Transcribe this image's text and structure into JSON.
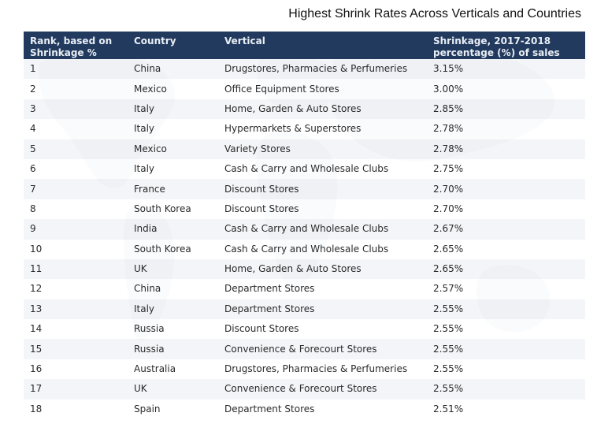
{
  "chart_data": {
    "type": "table",
    "title": "Highest Shrink Rates Across Verticals and Countries",
    "columns": [
      "Rank, based on Shrinkage %",
      "Country",
      "Vertical",
      "Shrinkage, 2017-2018 percentage (%) of sales"
    ],
    "rows": [
      [
        "1",
        "China",
        "Drugstores, Pharmacies & Perfumeries",
        "3.15%"
      ],
      [
        "2",
        "Mexico",
        "Office Equipment Stores",
        "3.00%"
      ],
      [
        "3",
        "Italy",
        "Home, Garden & Auto Stores",
        "2.85%"
      ],
      [
        "4",
        "Italy",
        "Hypermarkets & Superstores",
        "2.78%"
      ],
      [
        "5",
        "Mexico",
        "Variety Stores",
        "2.78%"
      ],
      [
        "6",
        "Italy",
        "Cash & Carry and Wholesale Clubs",
        "2.75%"
      ],
      [
        "7",
        "France",
        "Discount Stores",
        "2.70%"
      ],
      [
        "8",
        "South Korea",
        "Discount Stores",
        "2.70%"
      ],
      [
        "9",
        "India",
        "Cash & Carry and Wholesale Clubs",
        "2.67%"
      ],
      [
        "10",
        "South Korea",
        "Cash & Carry and Wholesale Clubs",
        "2.65%"
      ],
      [
        "11",
        "UK",
        "Home, Garden & Auto Stores",
        "2.65%"
      ],
      [
        "12",
        "China",
        "Department Stores",
        "2.57%"
      ],
      [
        "13",
        "Italy",
        "Department Stores",
        "2.55%"
      ],
      [
        "14",
        "Russia",
        "Discount Stores",
        "2.55%"
      ],
      [
        "15",
        "Russia",
        "Convenience & Forecourt Stores",
        "2.55%"
      ],
      [
        "16",
        "Australia",
        "Drugstores, Pharmacies & Perfumeries",
        "2.55%"
      ],
      [
        "17",
        "UK",
        "Convenience & Forecourt Stores",
        "2.55%"
      ],
      [
        "18",
        "Spain",
        "Department Stores",
        "2.51%"
      ]
    ]
  },
  "colors": {
    "header_bg": "#223a5e",
    "header_text": "#e9eef5",
    "row_alt": "#f0f3f7",
    "map_tint": "#e2e6ec"
  }
}
